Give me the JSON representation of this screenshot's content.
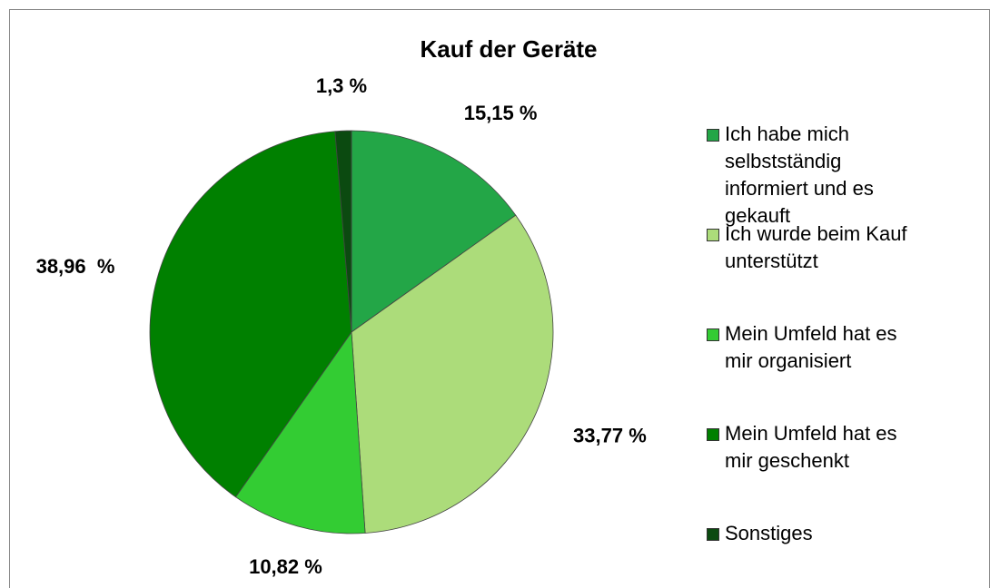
{
  "chart_data": {
    "type": "pie",
    "title": "Kauf der Geräte",
    "categories": [
      "Ich habe mich selbstständig informiert und es gekauft",
      "Ich wurde beim Kauf unterstützt",
      "Mein Umfeld hat es mir organisiert",
      "Mein Umfeld hat es mir geschenkt",
      "Sonstiges"
    ],
    "values": [
      15.15,
      33.77,
      10.82,
      38.96,
      1.3
    ],
    "value_labels": [
      "15,15 %",
      "33,77 %",
      "10,82 %",
      "38,96  %",
      "1,3 %"
    ],
    "colors": [
      "#23a647",
      "#acdc7a",
      "#33cc33",
      "#008000",
      "#0b4a10"
    ],
    "legend": "right"
  }
}
